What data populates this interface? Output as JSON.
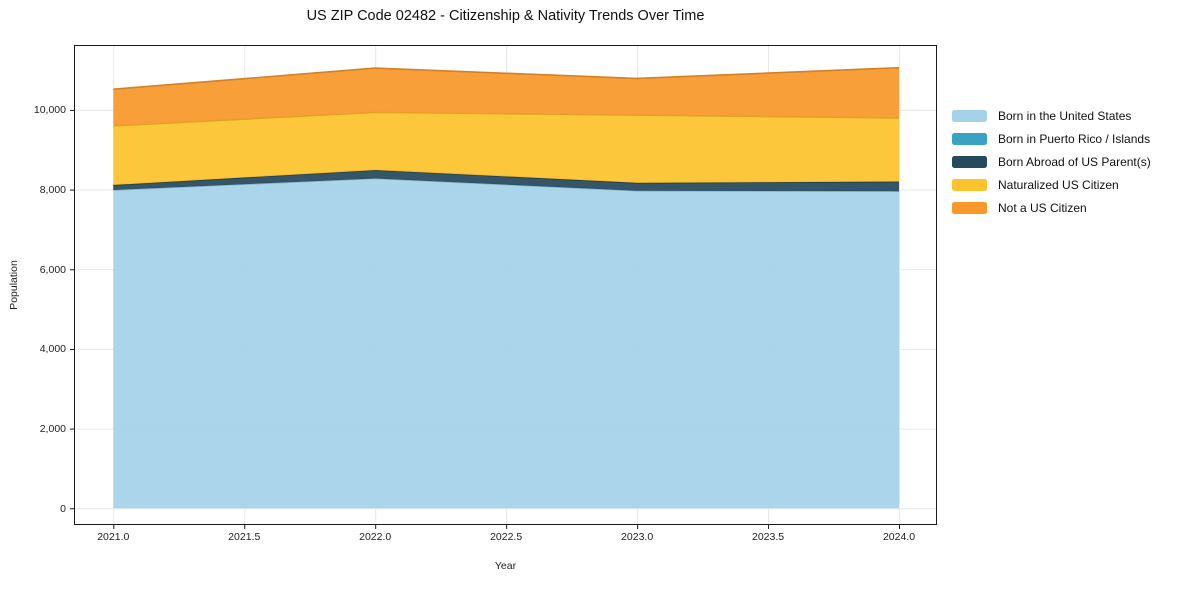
{
  "title": "US ZIP Code 02482 - Citizenship & Nativity Trends Over Time",
  "chart_data": {
    "type": "area",
    "stacked": true,
    "title": "US ZIP Code 02482 - Citizenship & Nativity Trends Over Time",
    "xlabel": "Year",
    "ylabel": "Population",
    "x": [
      2021,
      2022,
      2023,
      2024
    ],
    "series": [
      {
        "name": "Born in the United States",
        "color": "#a5d2e8",
        "values": [
          7990,
          8280,
          7970,
          7960
        ]
      },
      {
        "name": "Born in Puerto Rico / Islands",
        "color": "#3aa2c2",
        "values": [
          0,
          0,
          0,
          0
        ]
      },
      {
        "name": "Born Abroad of US Parent(s)",
        "color": "#25495d",
        "values": [
          125,
          210,
          200,
          240
        ]
      },
      {
        "name": "Naturalized US Citizen",
        "color": "#fdc32d",
        "values": [
          1485,
          1450,
          1700,
          1600
        ]
      },
      {
        "name": "Not a US Citizen",
        "color": "#f8982b",
        "values": [
          920,
          1110,
          920,
          1260
        ]
      }
    ],
    "stack_totals": [
      10520,
      11050,
      10790,
      11060
    ],
    "x_ticks": [
      "2021.0",
      "2021.5",
      "2022.0",
      "2022.5",
      "2023.0",
      "2023.5",
      "2024.0"
    ],
    "x_tick_values": [
      2021,
      2021.5,
      2022,
      2022.5,
      2023,
      2023.5,
      2024
    ],
    "y_ticks": [
      "0",
      "2,000",
      "4,000",
      "6,000",
      "8,000",
      "10,000"
    ],
    "y_tick_values": [
      0,
      2000,
      4000,
      6000,
      8000,
      10000
    ],
    "xlim": [
      2020.85,
      2024.145
    ],
    "ylim": [
      -420,
      11630
    ],
    "grid": true,
    "legend_position": "right-outside"
  },
  "colors": {
    "grid": "#e7e7e7",
    "spine": "#1a1a1a",
    "tick": "#1a1a1a",
    "background": "#ffffff"
  }
}
